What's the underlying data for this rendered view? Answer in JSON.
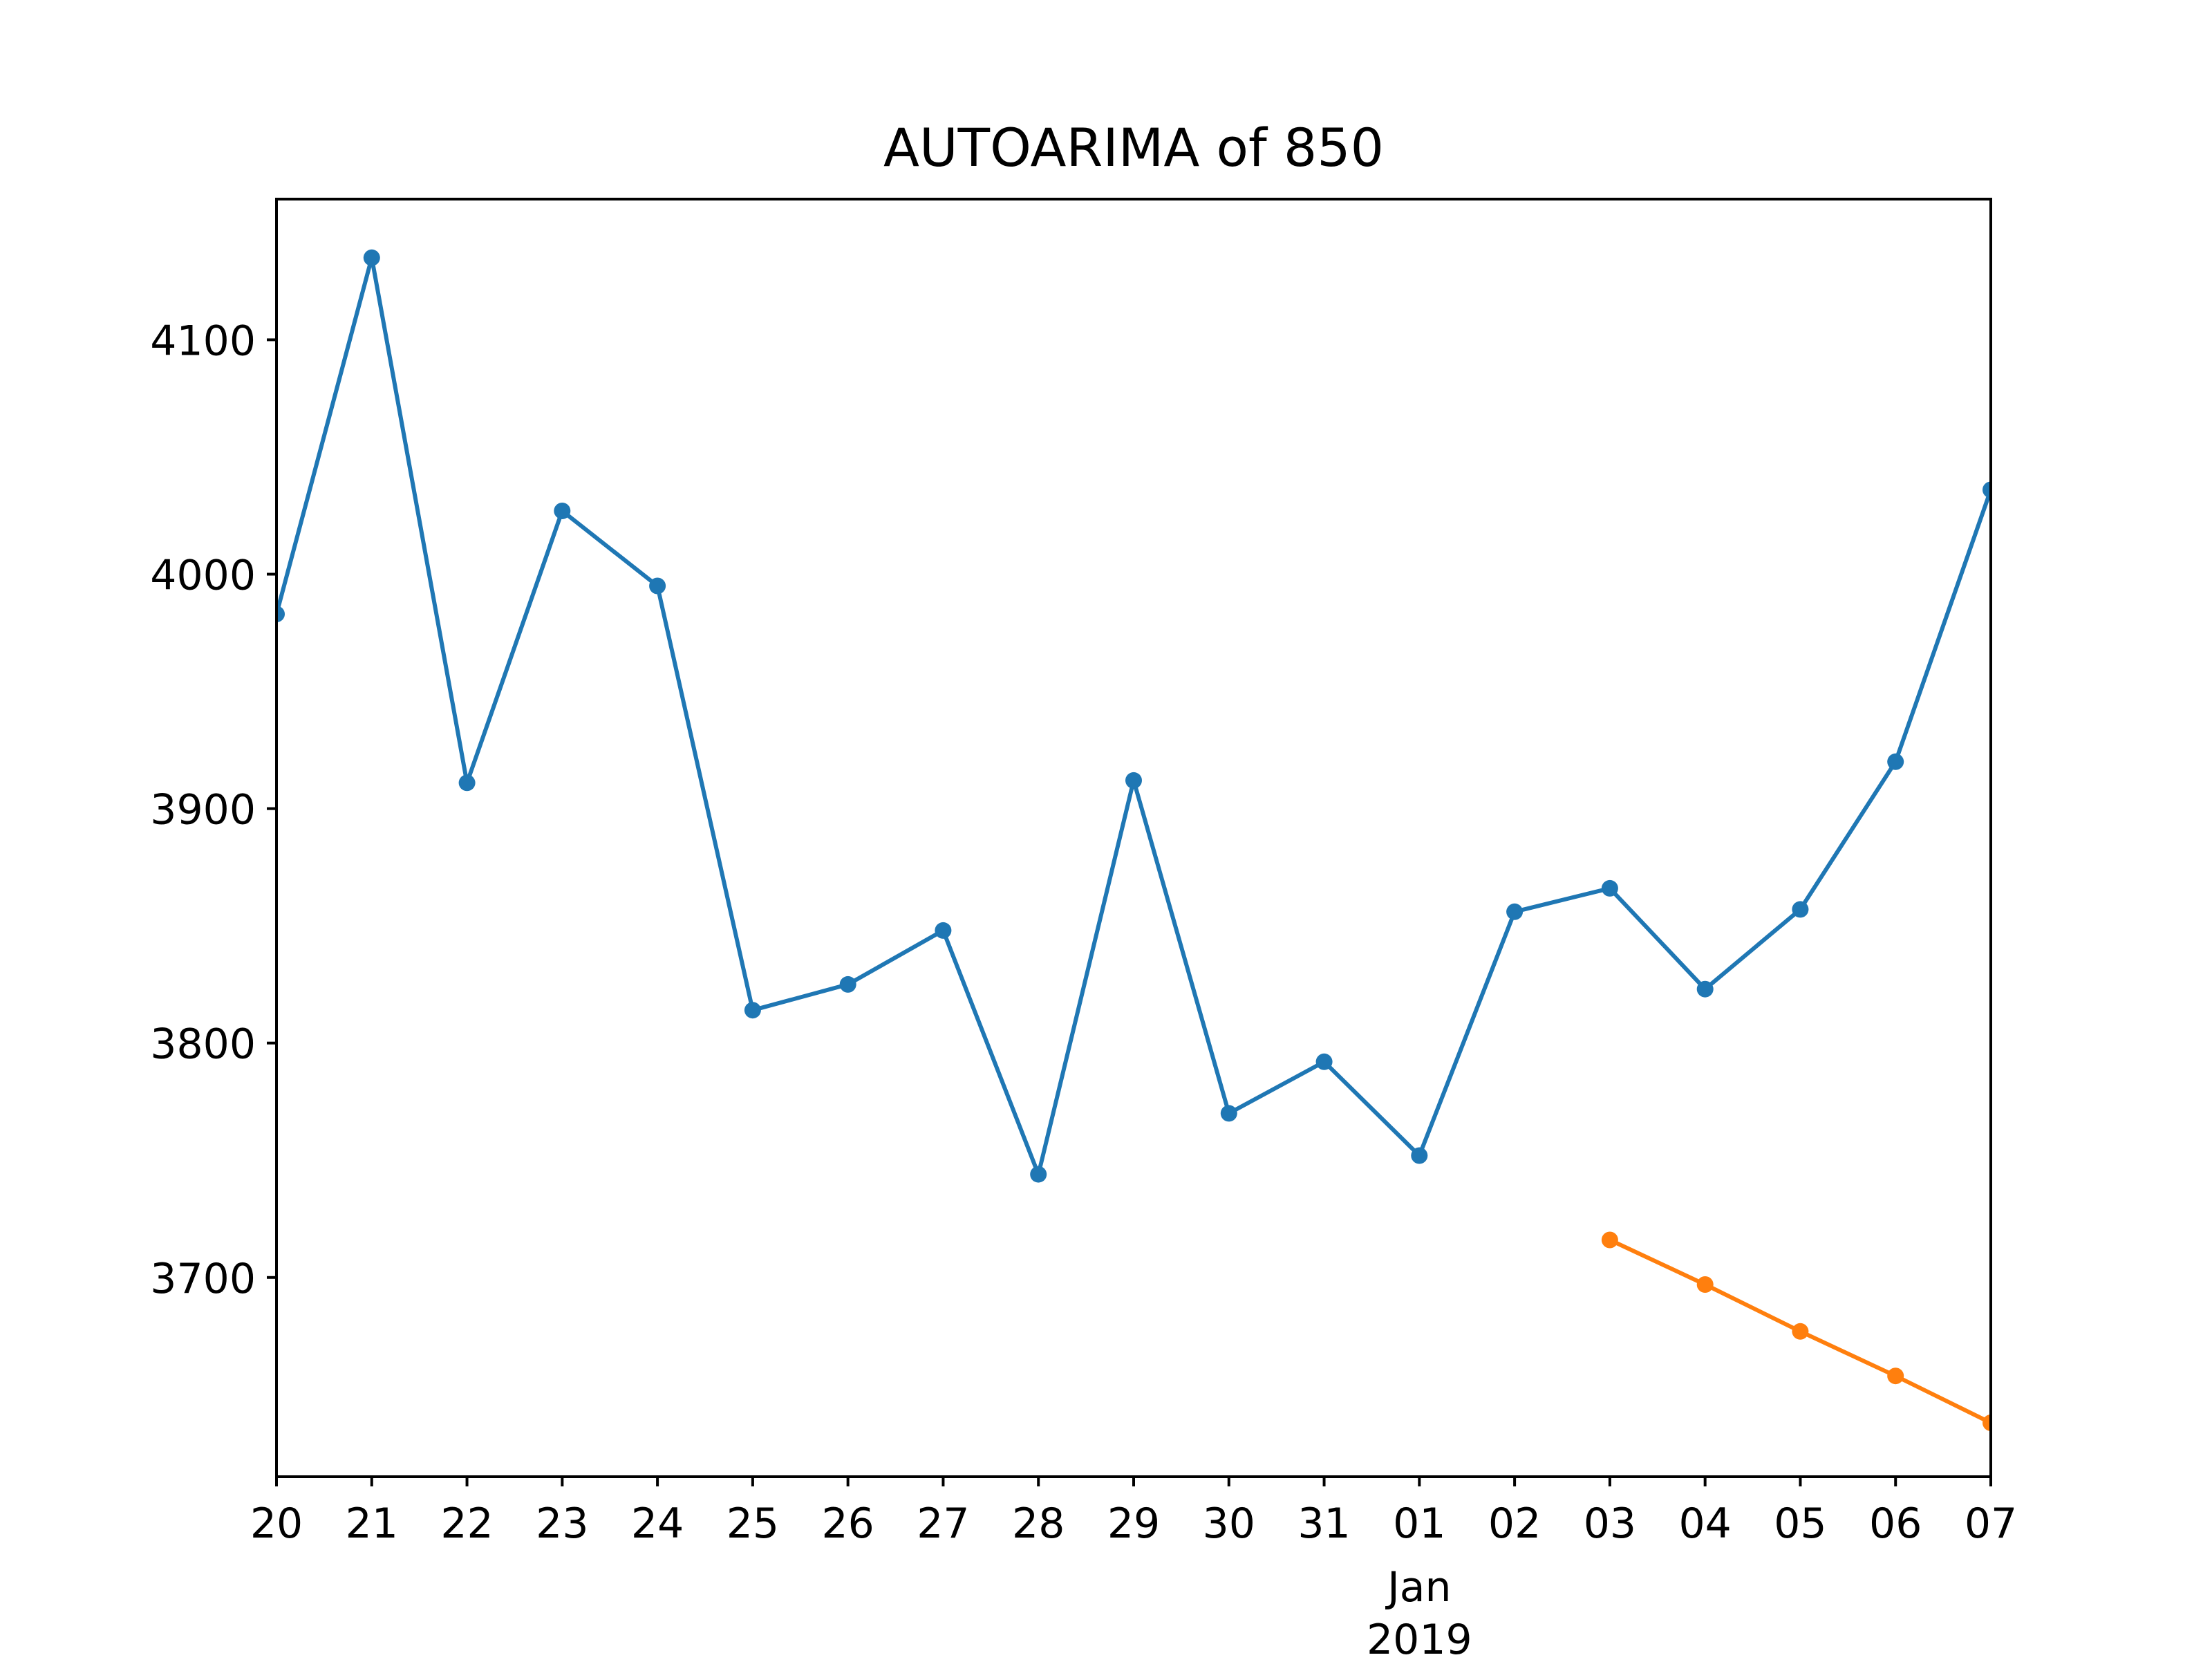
{
  "chart_data": {
    "type": "line",
    "title": "AUTOARIMA of 850",
    "xlabel": "",
    "ylabel": "",
    "x": [
      "2018-12-20",
      "2018-12-21",
      "2018-12-22",
      "2018-12-23",
      "2018-12-24",
      "2018-12-25",
      "2018-12-26",
      "2018-12-27",
      "2018-12-28",
      "2018-12-29",
      "2018-12-30",
      "2018-12-31",
      "2019-01-01",
      "2019-01-02",
      "2019-01-03",
      "2019-01-04",
      "2019-01-05",
      "2019-01-06",
      "2019-01-07"
    ],
    "x_tick_labels": [
      "20",
      "21",
      "22",
      "23",
      "24",
      "25",
      "26",
      "27",
      "28",
      "29",
      "30",
      "31",
      "01",
      "02",
      "03",
      "04",
      "05",
      "06",
      "07"
    ],
    "x_secondary_label": {
      "tick": "2019-01-01",
      "lines": [
        "Jan",
        "2019"
      ]
    },
    "xlim": [
      "2018-12-20",
      "2019-01-07"
    ],
    "ylim": [
      3615,
      4160
    ],
    "yticks": [
      3700,
      3800,
      3900,
      4000,
      4100
    ],
    "grid": false,
    "series": [
      {
        "color": "#1f77b4",
        "marker": "circle",
        "x": [
          "2018-12-20",
          "2018-12-21",
          "2018-12-22",
          "2018-12-23",
          "2018-12-24",
          "2018-12-25",
          "2018-12-26",
          "2018-12-27",
          "2018-12-28",
          "2018-12-29",
          "2018-12-30",
          "2018-12-31",
          "2019-01-01",
          "2019-01-02",
          "2019-01-03",
          "2019-01-04",
          "2019-01-05",
          "2019-01-06",
          "2019-01-07"
        ],
        "values": [
          3983,
          4135,
          3911,
          4027,
          3995,
          3814,
          3825,
          3848,
          3744,
          3912,
          3770,
          3792,
          3752,
          3856,
          3866,
          3823,
          3857,
          3920,
          4036
        ]
      },
      {
        "color": "#ff7f0e",
        "marker": "circle",
        "x": [
          "2019-01-03",
          "2019-01-04",
          "2019-01-05",
          "2019-01-06",
          "2019-01-07"
        ],
        "values": [
          3716,
          3697,
          3677,
          3658,
          3638
        ]
      }
    ]
  }
}
